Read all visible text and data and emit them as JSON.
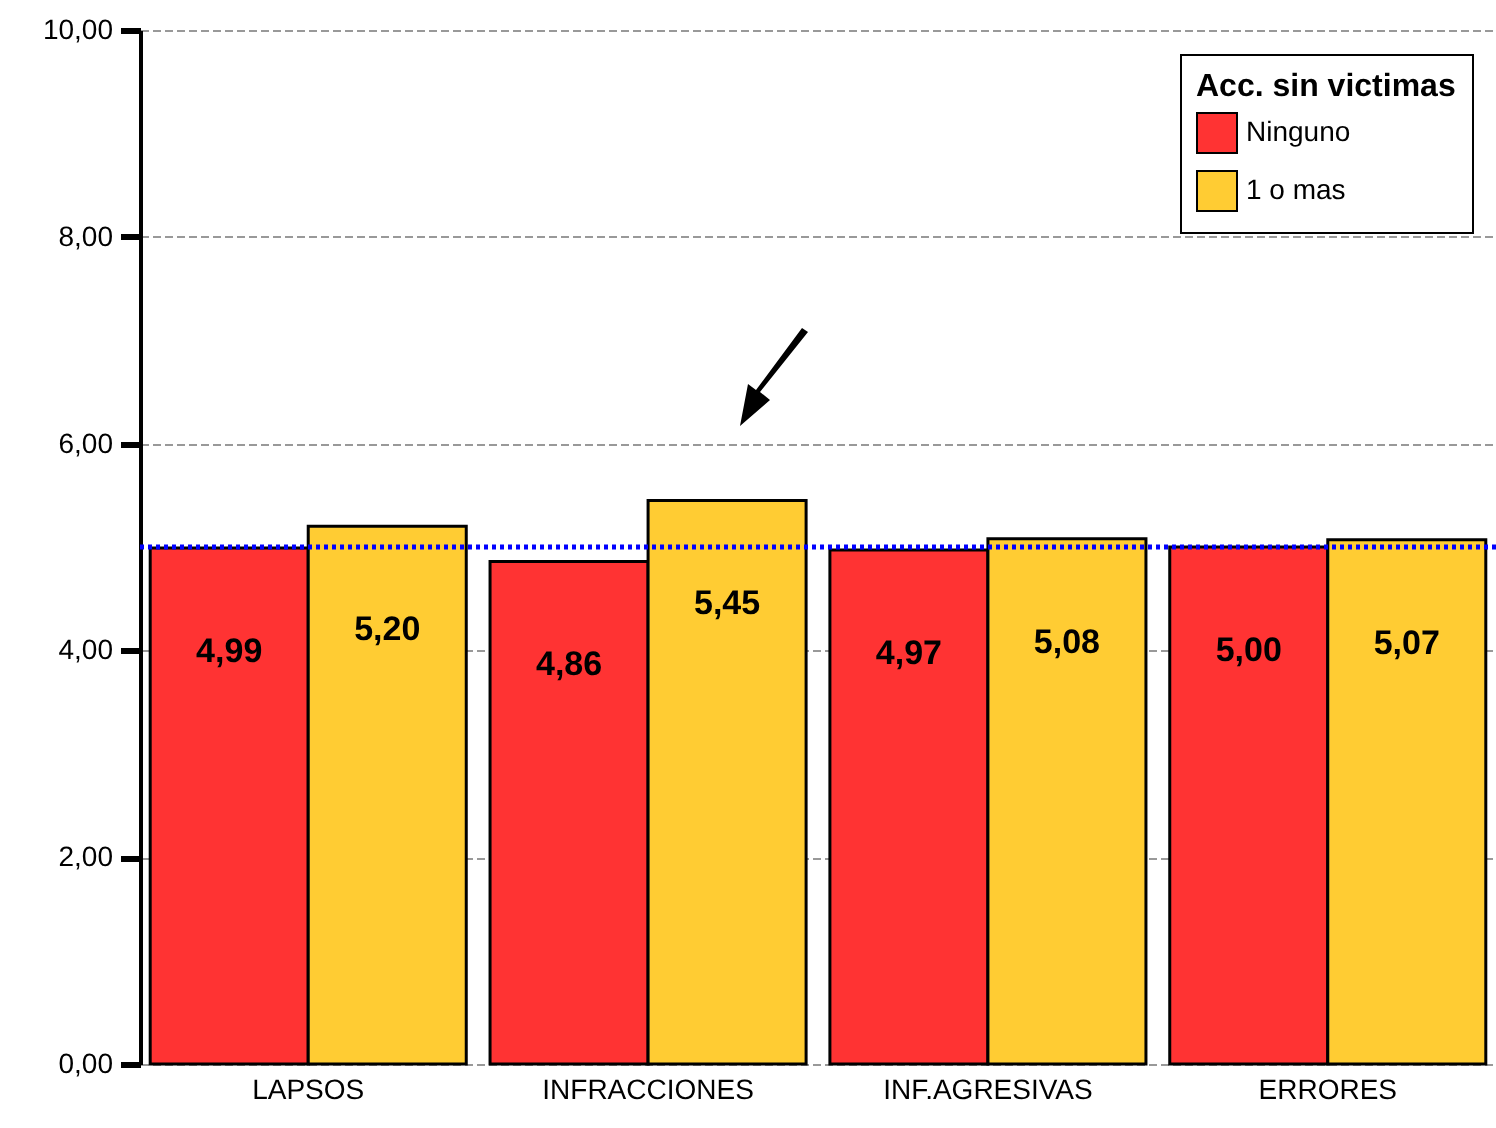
{
  "chart_data": {
    "type": "bar",
    "categories": [
      "LAPSOS",
      "INFRACCIONES",
      "INF.AGRESIVAS",
      "ERRORES"
    ],
    "series": [
      {
        "name": "Ninguno",
        "color": "#ff3333",
        "values": [
          4.99,
          4.86,
          4.97,
          5.0
        ],
        "value_labels": [
          "4,99",
          "4,86",
          "4,97",
          "5,00"
        ]
      },
      {
        "name": "1 o mas",
        "color": "#ffcc33",
        "values": [
          5.2,
          5.45,
          5.08,
          5.07
        ],
        "value_labels": [
          "5,20",
          "5,45",
          "5,08",
          "5,07"
        ]
      }
    ],
    "legend_title": "Acc. sin victimas",
    "legend": "top right",
    "ylim": [
      0,
      10
    ],
    "yticks": [
      {
        "value": 0,
        "label": "0,00"
      },
      {
        "value": 2,
        "label": "2,00"
      },
      {
        "value": 4,
        "label": "4,00"
      },
      {
        "value": 6,
        "label": "6,00"
      },
      {
        "value": 8,
        "label": "8,00"
      },
      {
        "value": 10,
        "label": "10,00"
      }
    ],
    "grid": "y",
    "ref_lines": [
      {
        "axis": "y",
        "value": 5,
        "color": "#0000ff",
        "line_style": "dotted"
      }
    ]
  }
}
